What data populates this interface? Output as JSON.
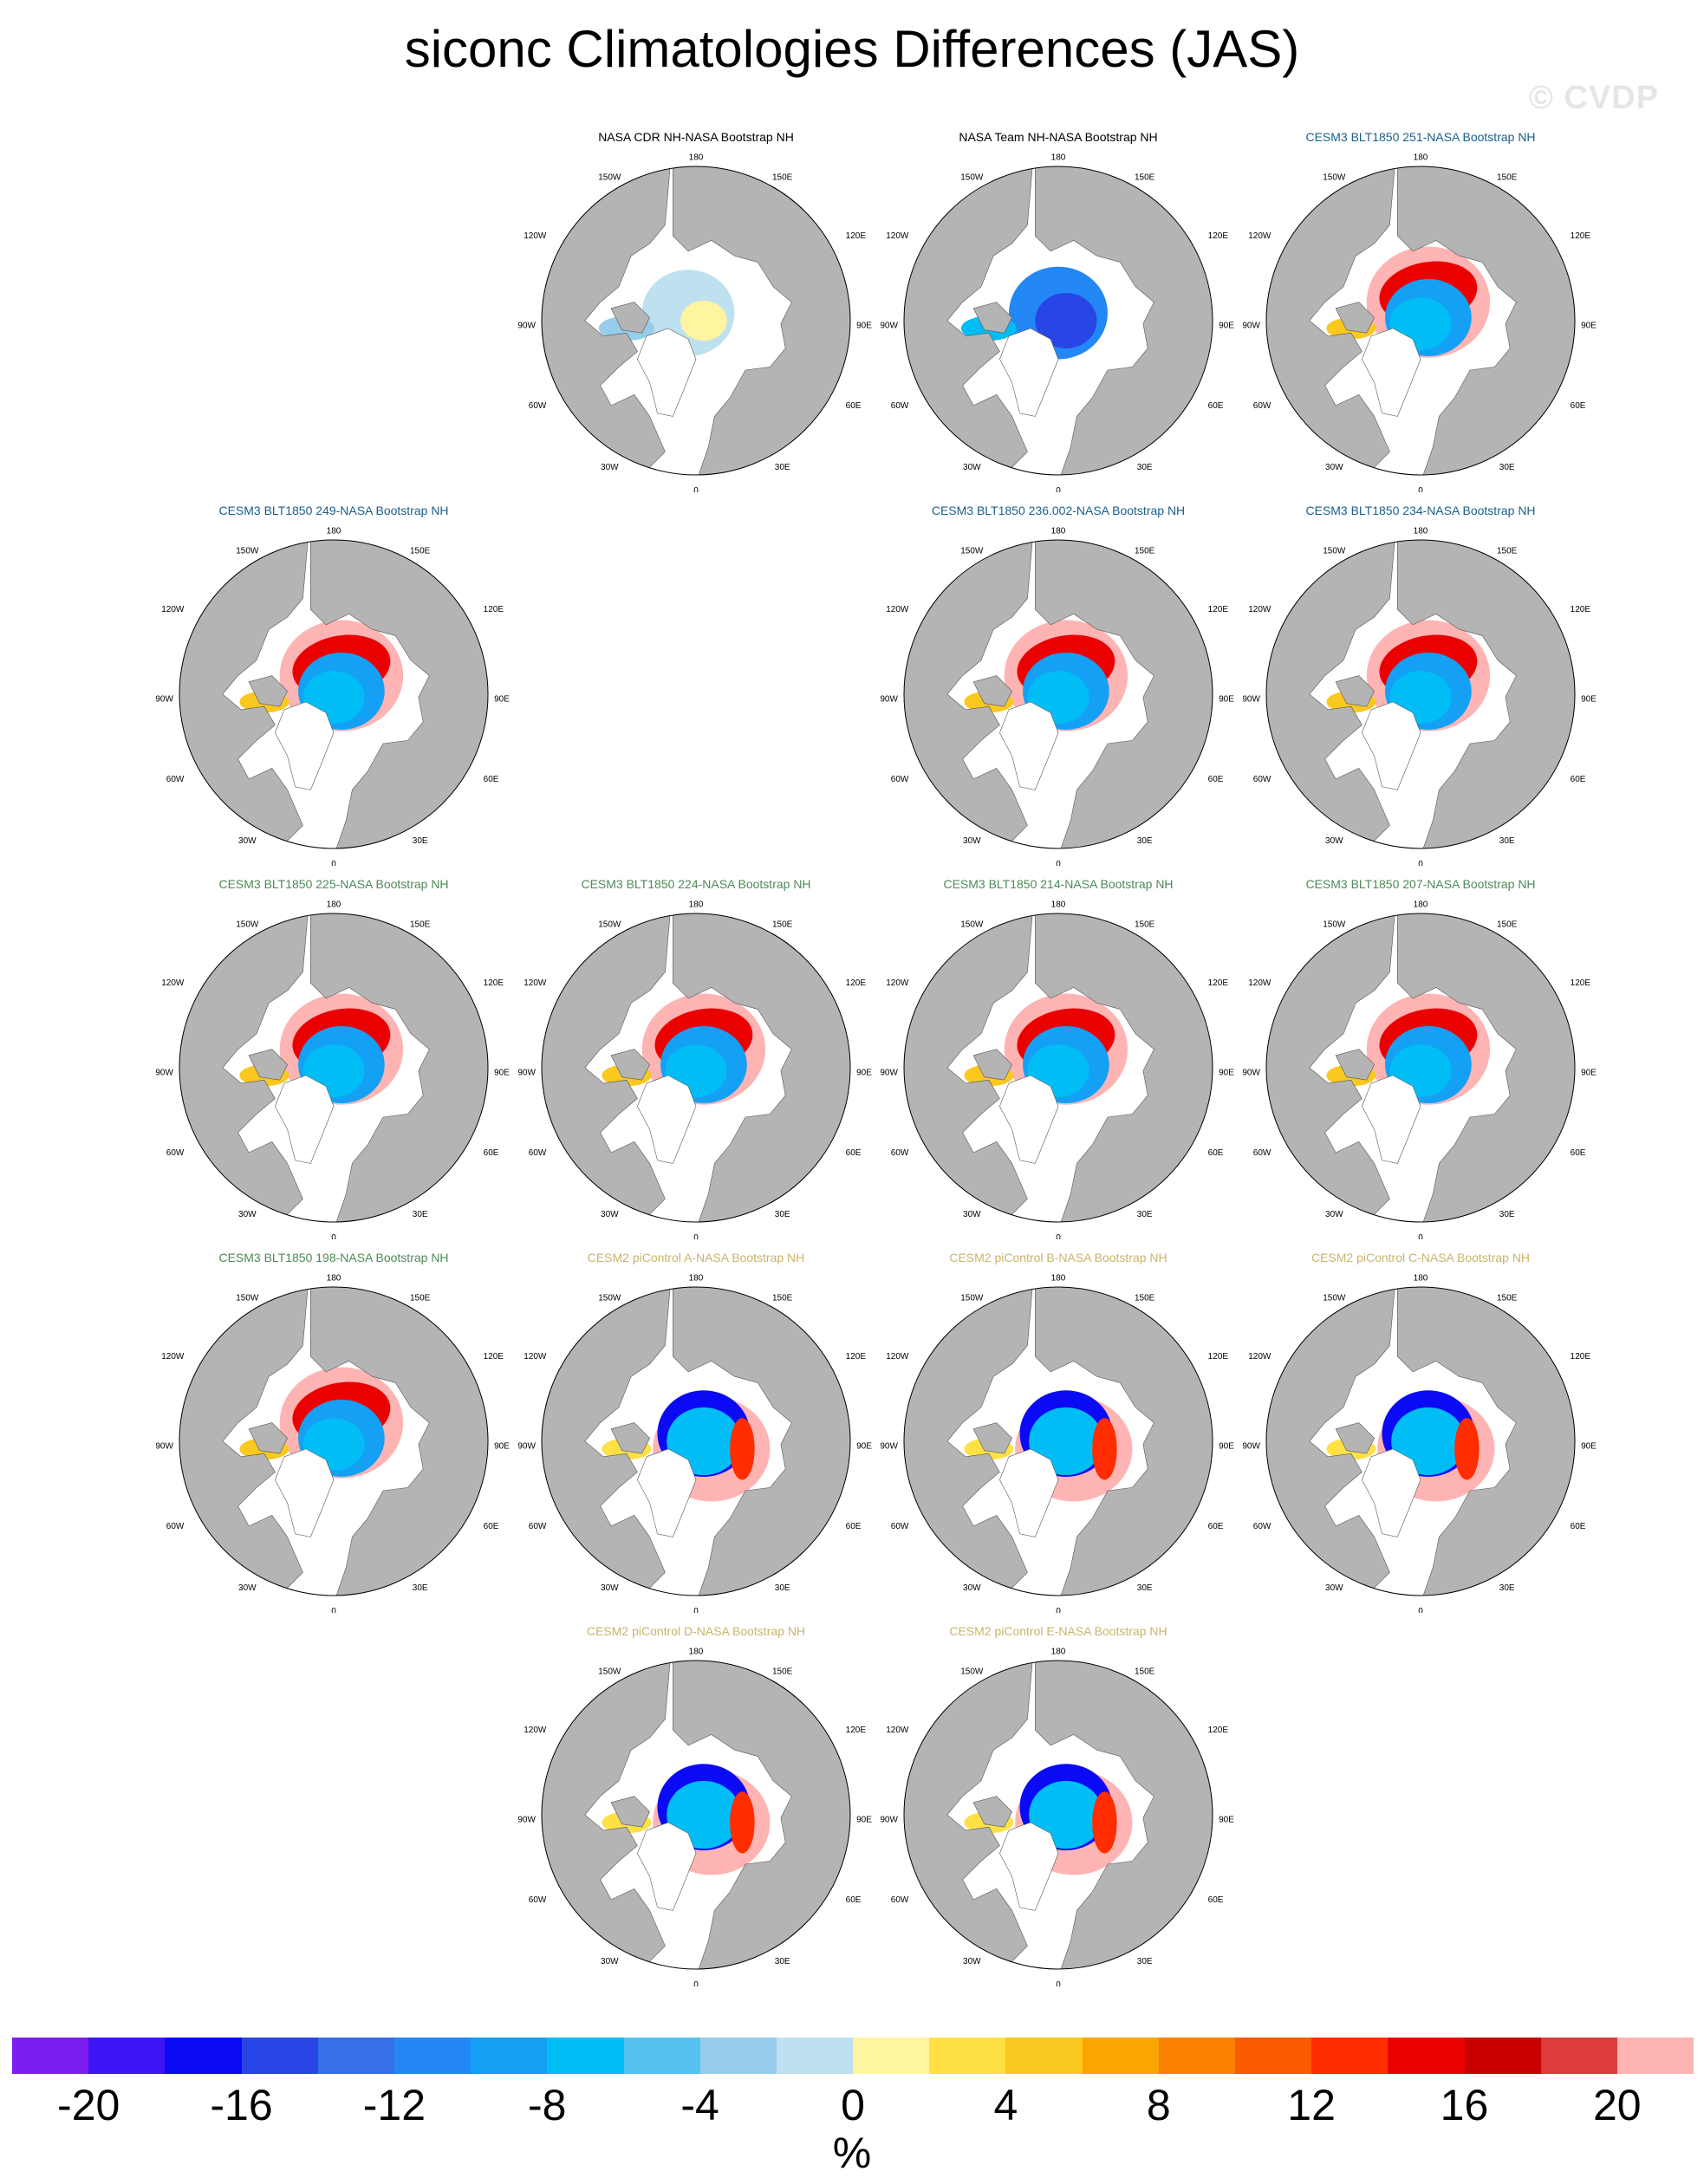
{
  "title": "siconc Climatologies Differences (JAS)",
  "watermark": "© CVDP",
  "units": "%",
  "colors": {
    "land": "#b4b4b4",
    "ocean": "#ffffff",
    "title_reference": "#000000",
    "title_cesm3_blue": "#1a5f8a",
    "title_cesm3_green": "#4d8a57",
    "title_cesm2": "#c9b46b"
  },
  "map_labels": {
    "top": "180",
    "bottom": "0",
    "upper_left": "150W",
    "upper_right": "150E",
    "mid_upper_left": "120W",
    "mid_upper_right": "120E",
    "left": "90W",
    "right": "90E",
    "mid_lower_left": "60W",
    "mid_lower_right": "60E",
    "lower_left": "30W",
    "lower_right": "30E"
  },
  "panels": [
    {
      "title": "NASA CDR NH-NASA Bootstrap NH",
      "title_color": "reference",
      "pattern": "cdr"
    },
    {
      "title": "NASA Team NH-NASA Bootstrap NH",
      "title_color": "reference",
      "pattern": "team"
    },
    {
      "title": "CESM3 BLT1850 251-NASA Bootstrap NH",
      "title_color": "cesm3_blue",
      "pattern": "cesm3"
    },
    {
      "title": "CESM3 BLT1850 249-NASA Bootstrap NH",
      "title_color": "cesm3_blue",
      "pattern": "cesm3"
    },
    {
      "title": "CESM3 BLT1850 236.002-NASA Bootstrap NH",
      "title_color": "cesm3_blue",
      "pattern": "cesm3"
    },
    {
      "title": "CESM3 BLT1850 234-NASA Bootstrap NH",
      "title_color": "cesm3_blue",
      "pattern": "cesm3"
    },
    {
      "title": "CESM3 BLT1850 225-NASA Bootstrap NH",
      "title_color": "cesm3_green",
      "pattern": "cesm3"
    },
    {
      "title": "CESM3 BLT1850 224-NASA Bootstrap NH",
      "title_color": "cesm3_green",
      "pattern": "cesm3"
    },
    {
      "title": "CESM3 BLT1850 214-NASA Bootstrap NH",
      "title_color": "cesm3_green",
      "pattern": "cesm3"
    },
    {
      "title": "CESM3 BLT1850 207-NASA Bootstrap NH",
      "title_color": "cesm3_green",
      "pattern": "cesm3"
    },
    {
      "title": "CESM3 BLT1850 198-NASA Bootstrap NH",
      "title_color": "cesm3_green",
      "pattern": "cesm3"
    },
    {
      "title": "CESM2 piControl A-NASA Bootstrap NH",
      "title_color": "cesm2",
      "pattern": "cesm2"
    },
    {
      "title": "CESM2 piControl B-NASA Bootstrap NH",
      "title_color": "cesm2",
      "pattern": "cesm2"
    },
    {
      "title": "CESM2 piControl C-NASA Bootstrap NH",
      "title_color": "cesm2",
      "pattern": "cesm2"
    },
    {
      "title": "CESM2 piControl D-NASA Bootstrap NH",
      "title_color": "cesm2",
      "pattern": "cesm2"
    },
    {
      "title": "CESM2 piControl E-NASA Bootstrap NH",
      "title_color": "cesm2",
      "pattern": "cesm2"
    }
  ],
  "colorbar": {
    "colors": [
      "#7d1ef0",
      "#3c14f5",
      "#0a0af5",
      "#2846e6",
      "#3570e6",
      "#2387f5",
      "#14a0f5",
      "#00bef5",
      "#55c3f0",
      "#96cdeb",
      "#bee1f0",
      "#fff5a0",
      "#ffe146",
      "#fac81e",
      "#faa500",
      "#fa8200",
      "#fa5a00",
      "#ff2d00",
      "#eb0000",
      "#c80000",
      "#dc3c3c",
      "#ffb4b4"
    ],
    "labels": [
      "-20",
      "-16",
      "-12",
      "-8",
      "-4",
      "0",
      "4",
      "8",
      "12",
      "16",
      "20"
    ],
    "label_boundaries": [
      1,
      3,
      5,
      7,
      9,
      11,
      13,
      15,
      17,
      19,
      21
    ]
  }
}
